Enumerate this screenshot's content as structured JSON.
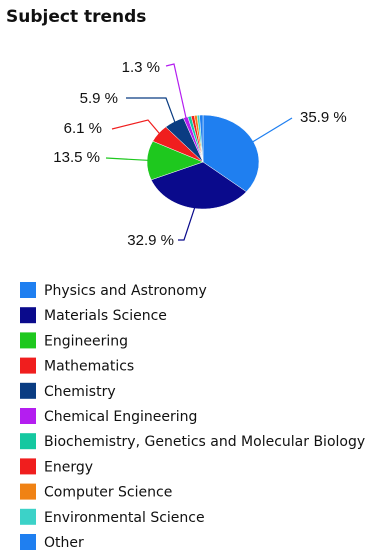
{
  "chart_data": {
    "type": "pie",
    "title": "Subject trends",
    "categories": [
      "Physics and Astronomy",
      "Materials Science",
      "Engineering",
      "Mathematics",
      "Chemistry",
      "Chemical Engineering",
      "Biochemistry, Genetics and Molecular Biology",
      "Energy",
      "Computer Science",
      "Environmental Science",
      "Other"
    ],
    "values": [
      35.9,
      32.9,
      13.5,
      6.1,
      5.9,
      1.3,
      1.0,
      0.9,
      0.8,
      0.7,
      1.0
    ],
    "value_labels": [
      "35.9 %",
      "32.9 %",
      "13.5 %",
      "6.1 %",
      "5.9 %",
      "1.3 %",
      null,
      null,
      null,
      null,
      null
    ],
    "colors": [
      "#1f7ff0",
      "#0a0a8c",
      "#1ec81e",
      "#f01e1e",
      "#0a3c82",
      "#b41ef0",
      "#14c8a0",
      "#f01e1e",
      "#f08214",
      "#3cd2c8",
      "#1f7ff0"
    ]
  }
}
